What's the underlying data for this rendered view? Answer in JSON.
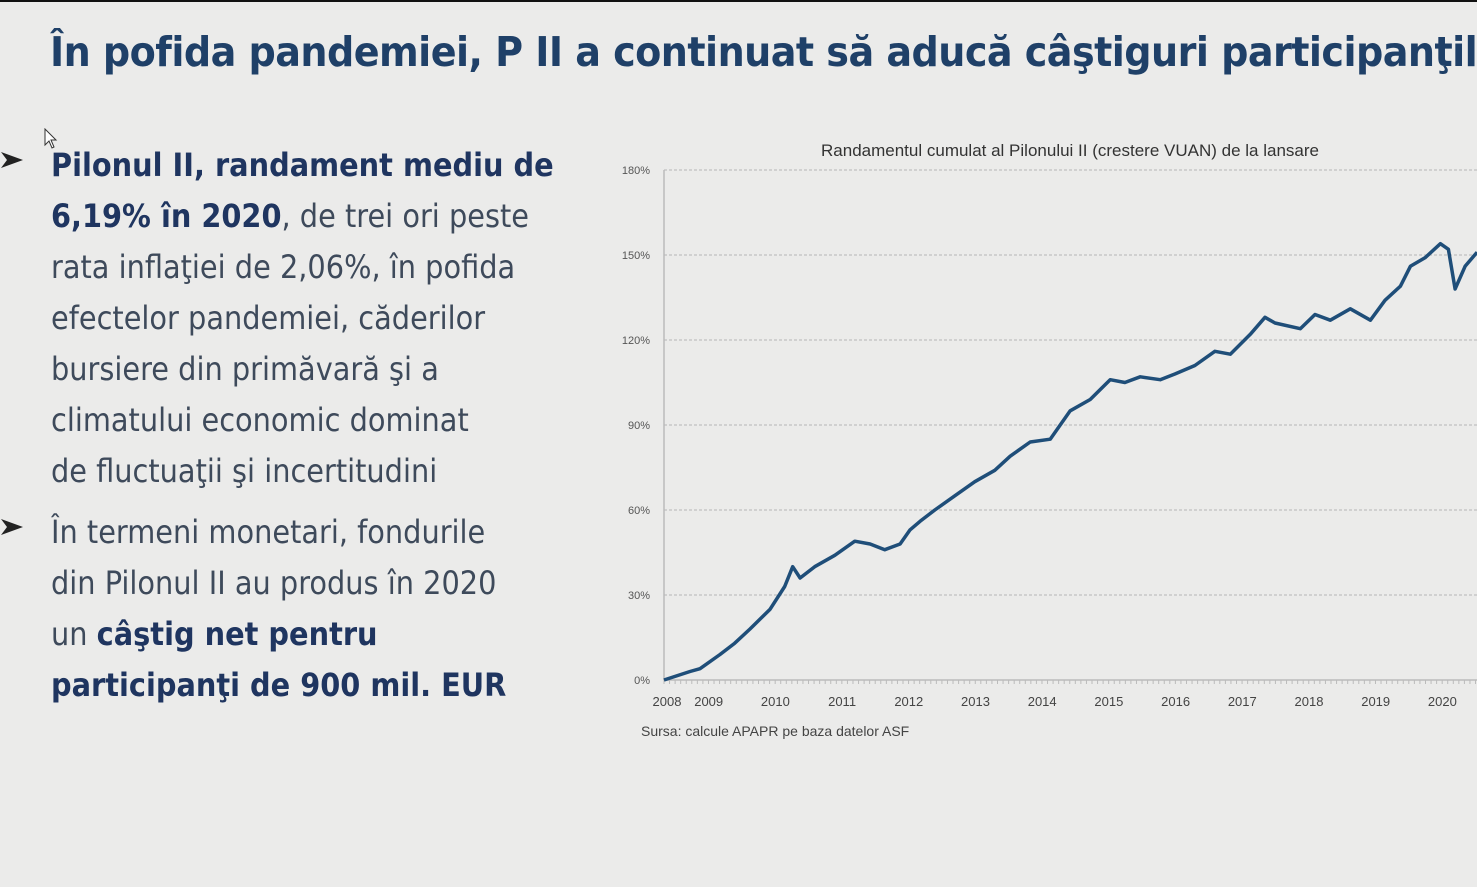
{
  "slide": {
    "title": "În pofida pandemiei, P II a continuat să aducă câştiguri participanţilor",
    "colors": {
      "title": "#1f4068",
      "body_text": "#3e4a5b",
      "bold_text": "#1f3560",
      "background": "#ebebea",
      "series_line": "#1f4e79"
    },
    "bullets": [
      {
        "icon": "arrowhead-bullet-icon",
        "lines": [
          [
            {
              "text": "Pilonul II, randament mediu de",
              "bold": true
            }
          ],
          [
            {
              "text": "6,19% în 2020",
              "bold": true
            },
            {
              "text": ", de trei ori peste",
              "bold": false
            }
          ],
          [
            {
              "text": "rata inflaţiei de 2,06%, în pofida",
              "bold": false
            }
          ],
          [
            {
              "text": "efectelor pandemiei, căderilor",
              "bold": false
            }
          ],
          [
            {
              "text": "bursiere din primăvară şi a",
              "bold": false
            }
          ],
          [
            {
              "text": "climatului economic dominat",
              "bold": false
            }
          ],
          [
            {
              "text": "de fluctuaţii şi incertitudini",
              "bold": false
            }
          ]
        ]
      },
      {
        "icon": "arrowhead-bullet-icon",
        "lines": [
          [
            {
              "text": "În termeni monetari, fondurile",
              "bold": false
            }
          ],
          [
            {
              "text": "din Pilonul II au produs în 2020",
              "bold": false
            }
          ],
          [
            {
              "text": "un ",
              "bold": false
            },
            {
              "text": "câştig net pentru",
              "bold": true
            }
          ],
          [
            {
              "text": "participanţi de 900 mil. EUR",
              "bold": true
            }
          ]
        ]
      }
    ]
  },
  "chart_data": {
    "type": "line",
    "title": "Randamentul cumulat al Pilonului II (crestere VUAN) de la lansare",
    "source": "Sursa: calcule APAPR pe baza datelor ASF",
    "xlabel": "",
    "ylabel": "",
    "ylim": [
      0,
      180
    ],
    "xlim": [
      2008.33,
      2020.52
    ],
    "y_ticks": [
      0,
      30,
      60,
      90,
      120,
      150,
      180
    ],
    "y_tick_labels": [
      "0%",
      "30%",
      "60%",
      "90%",
      "120%",
      "150%",
      "180%"
    ],
    "x_tick_labels": [
      "2008",
      "2009",
      "2010",
      "2011",
      "2012",
      "2013",
      "2014",
      "2015",
      "2016",
      "2017",
      "2018",
      "2019",
      "2020"
    ],
    "grid": "horizontal dashed",
    "legend": "none",
    "series": [
      {
        "color": "#1f4e79",
        "x": [
          2008.33,
          2008.72,
          2008.87,
          2009.17,
          2009.39,
          2009.62,
          2009.92,
          2010.14,
          2010.26,
          2010.37,
          2010.59,
          2010.89,
          2011.19,
          2011.42,
          2011.64,
          2011.87,
          2012.02,
          2012.17,
          2012.39,
          2012.69,
          2012.99,
          2013.29,
          2013.52,
          2013.82,
          2014.12,
          2014.42,
          2014.72,
          2015.02,
          2015.24,
          2015.47,
          2015.77,
          2015.99,
          2016.29,
          2016.59,
          2016.82,
          2017.12,
          2017.34,
          2017.49,
          2017.87,
          2018.09,
          2018.32,
          2018.62,
          2018.92,
          2019.14,
          2019.37,
          2019.52,
          2019.74,
          2019.97,
          2020.09,
          2020.19,
          2020.34,
          2020.52
        ],
        "y": [
          0,
          3,
          4,
          9,
          13,
          18,
          25,
          33,
          40,
          36,
          40,
          44,
          49,
          48,
          46,
          48,
          53,
          56,
          60,
          65,
          70,
          74,
          79,
          84,
          85,
          95,
          99,
          106,
          105,
          107,
          106,
          108,
          111,
          116,
          115,
          122,
          128,
          126,
          124,
          129,
          127,
          131,
          127,
          134,
          139,
          146,
          149,
          154,
          152,
          138,
          146,
          151
        ]
      }
    ]
  }
}
